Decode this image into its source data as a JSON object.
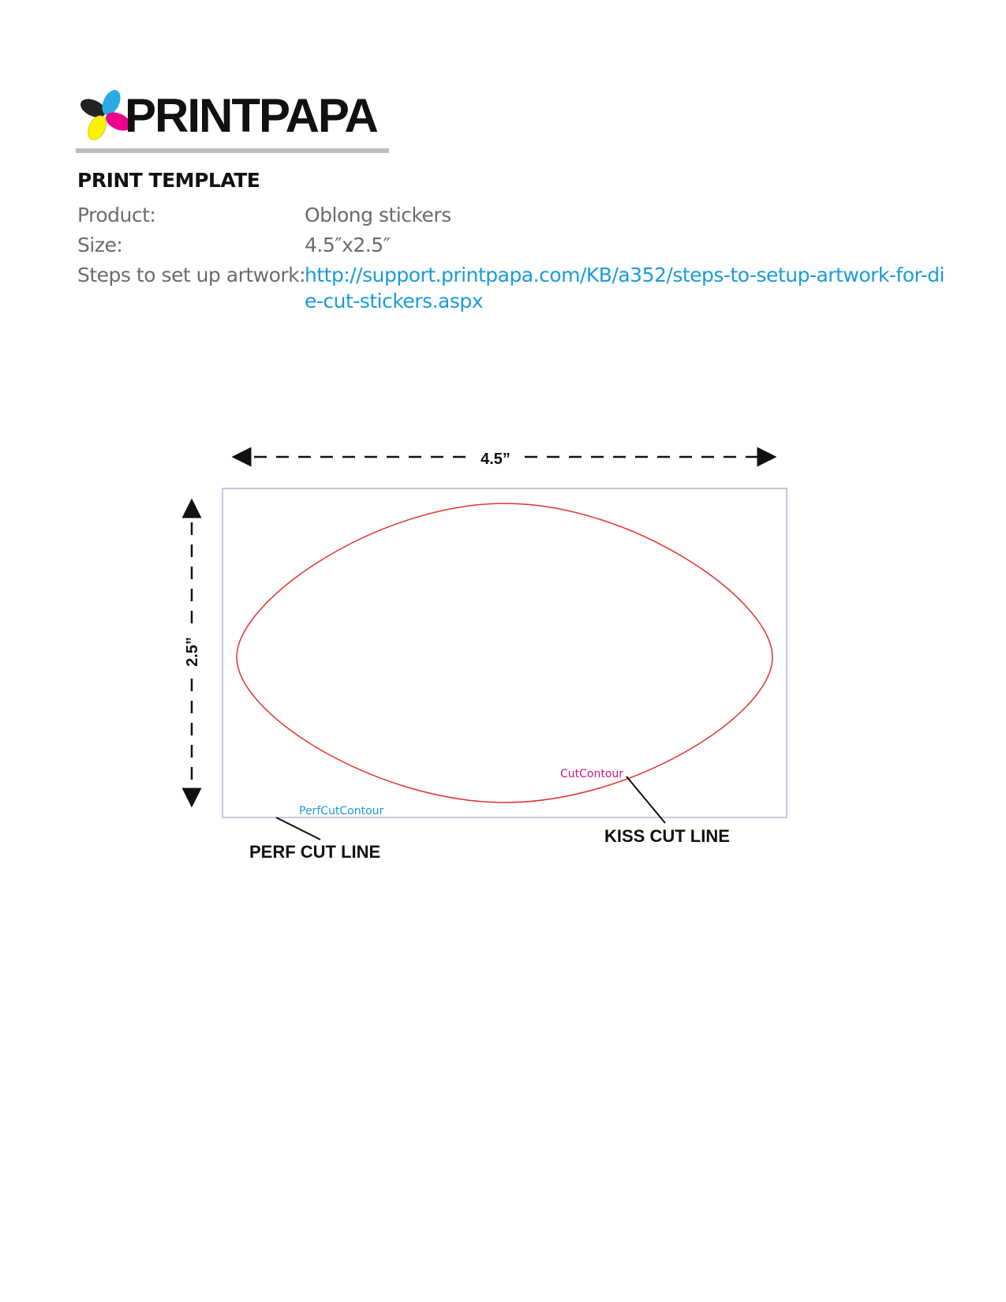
{
  "logo": {
    "text": "PRINTPAPA",
    "colors": [
      "#222222",
      "#29abe2",
      "#ec008c",
      "#fff200"
    ]
  },
  "header": {
    "title": "PRINT TEMPLATE"
  },
  "fields": [
    {
      "label": "Product:",
      "value": "Oblong stickers"
    },
    {
      "label": "Size:",
      "value": "4.5″x2.5″"
    },
    {
      "label": "Steps to set up artwork:",
      "value": "http://support.printpapa.com/KB/a352/steps-to-setup-artwork-for-die-cut-stickers.aspx"
    }
  ],
  "diagram": {
    "width_label": "4.5”",
    "height_label": "2.5”",
    "cut_contour_label": "CutContour",
    "perf_cut_contour_label": "PerfCutContour",
    "kiss_cut_callout": "KISS CUT LINE",
    "perf_cut_callout": "PERF CUT LINE",
    "colors": {
      "cut": "#e0312f",
      "perf": "#9fa3c9",
      "cut_label": "#d4147f",
      "perf_label": "#1a9bd7"
    }
  }
}
